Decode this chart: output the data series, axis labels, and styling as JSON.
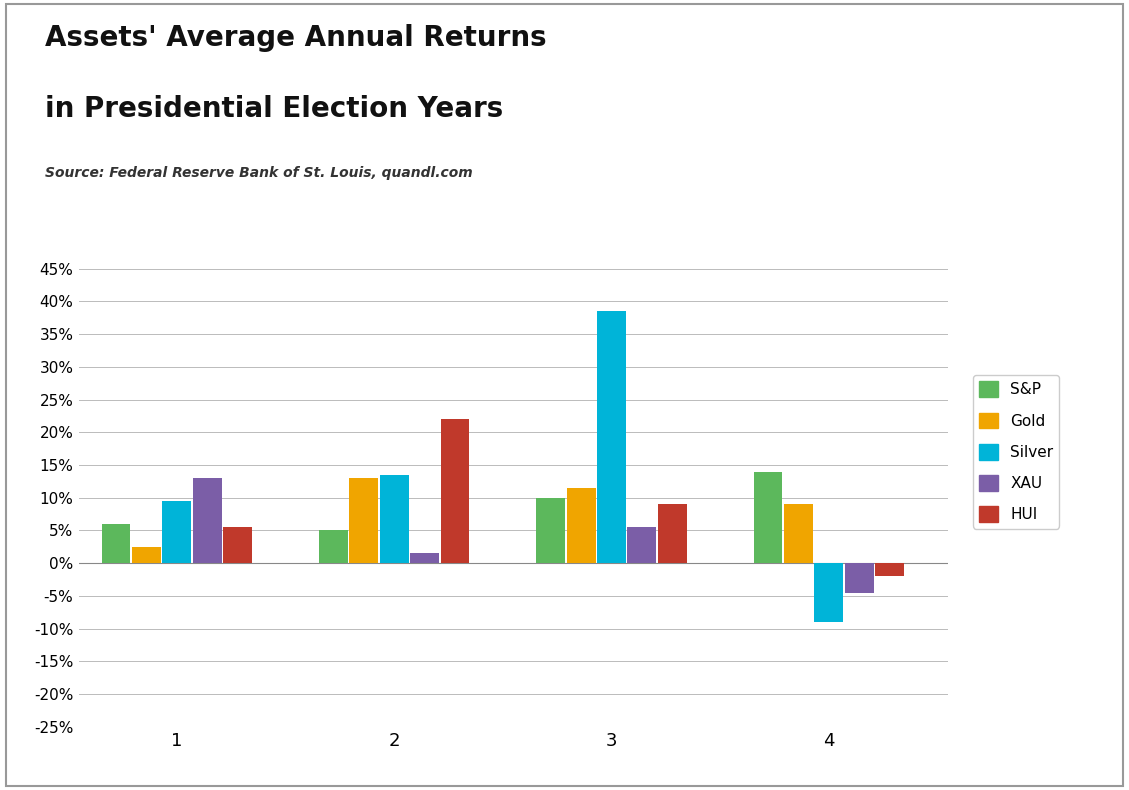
{
  "title_line1": "Assets' Average Annual Returns",
  "title_line2": "in Presidential Election Years",
  "source": "Source: Federal Reserve Bank of St. Louis, quandl.com",
  "categories": [
    "1",
    "2",
    "3",
    "4"
  ],
  "series_names": [
    "S&P",
    "Gold",
    "Silver",
    "XAU",
    "HUI"
  ],
  "series_values": {
    "S&P": [
      6.0,
      5.0,
      10.0,
      14.0
    ],
    "Gold": [
      2.5,
      13.0,
      11.5,
      9.0
    ],
    "Silver": [
      9.5,
      13.5,
      38.5,
      -9.0
    ],
    "XAU": [
      13.0,
      1.5,
      5.5,
      -4.5
    ],
    "HUI": [
      5.5,
      22.0,
      9.0,
      -2.0
    ]
  },
  "colors": {
    "S&P": "#5cb85c",
    "Gold": "#f0a500",
    "Silver": "#00b4d8",
    "XAU": "#7b5ea7",
    "HUI": "#c0392b"
  },
  "ylim": [
    -25,
    45
  ],
  "yticks": [
    -25,
    -20,
    -15,
    -10,
    -5,
    0,
    5,
    10,
    15,
    20,
    25,
    30,
    35,
    40,
    45
  ],
  "background_color": "#ffffff",
  "plot_bg_color": "#ffffff",
  "grid_color": "#bbbbbb",
  "bar_width": 0.14,
  "title_fontsize": 20,
  "source_fontsize": 10,
  "axis_tick_fontsize": 11,
  "legend_fontsize": 11
}
